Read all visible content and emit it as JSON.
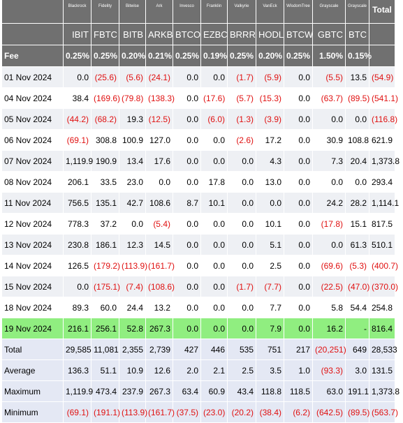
{
  "issuers": [
    "Blackrock",
    "Fidelity",
    "Bitwise",
    "Ark",
    "Invesco",
    "Franklin",
    "Valkyrie",
    "VanEck",
    "WisdomTree",
    "Grayscale",
    "Grayscale"
  ],
  "total_header": "Total",
  "tickers": [
    "IBIT",
    "FBTC",
    "BITB",
    "ARKB",
    "BTCO",
    "EZBC",
    "BRRR",
    "HODL",
    "BTCW",
    "GBTC",
    "BTC"
  ],
  "fee_label": "Fee",
  "fees": [
    "0.25%",
    "0.25%",
    "0.20%",
    "0.21%",
    "0.25%",
    "0.19%",
    "0.25%",
    "0.20%",
    "0.25%",
    "1.50%",
    "0.15%"
  ],
  "rows": [
    {
      "date": "01 Nov 2024",
      "values": [
        "0.0",
        "(25.6)",
        "(5.6)",
        "(24.1)",
        "0.0",
        "0.0",
        "(1.7)",
        "(5.9)",
        "0.0",
        "(5.5)",
        "13.5"
      ],
      "total": "(54.9)"
    },
    {
      "date": "04 Nov 2024",
      "values": [
        "38.4",
        "(169.6)",
        "(79.8)",
        "(138.3)",
        "0.0",
        "(17.6)",
        "(5.7)",
        "(15.3)",
        "0.0",
        "(63.7)",
        "(89.5)"
      ],
      "total": "(541.1)"
    },
    {
      "date": "05 Nov 2024",
      "values": [
        "(44.2)",
        "(68.2)",
        "19.3",
        "(12.5)",
        "0.0",
        "(6.0)",
        "(1.3)",
        "(3.9)",
        "0.0",
        "0.0",
        "0.0"
      ],
      "total": "(116.8)"
    },
    {
      "date": "06 Nov 2024",
      "values": [
        "(69.1)",
        "308.8",
        "100.9",
        "127.0",
        "0.0",
        "0.0",
        "(2.6)",
        "17.2",
        "0.0",
        "30.9",
        "108.8"
      ],
      "total": "621.9"
    },
    {
      "date": "07 Nov 2024",
      "values": [
        "1,119.9",
        "190.9",
        "13.4",
        "17.6",
        "0.0",
        "0.0",
        "0.0",
        "4.3",
        "0.0",
        "7.3",
        "20.4"
      ],
      "total": "1,373.8"
    },
    {
      "date": "08 Nov 2024",
      "values": [
        "206.1",
        "33.5",
        "23.0",
        "0.0",
        "0.0",
        "17.8",
        "0.0",
        "13.0",
        "0.0",
        "0.0",
        "0.0"
      ],
      "total": "293.4"
    },
    {
      "date": "11 Nov 2024",
      "values": [
        "756.5",
        "135.1",
        "42.7",
        "108.6",
        "8.7",
        "10.1",
        "0.0",
        "0.0",
        "0.0",
        "24.2",
        "28.2"
      ],
      "total": "1,114.1"
    },
    {
      "date": "12 Nov 2024",
      "values": [
        "778.3",
        "37.2",
        "0.0",
        "(5.4)",
        "0.0",
        "0.0",
        "0.0",
        "10.1",
        "0.0",
        "(17.8)",
        "15.1"
      ],
      "total": "817.5"
    },
    {
      "date": "13 Nov 2024",
      "values": [
        "230.8",
        "186.1",
        "12.3",
        "14.5",
        "0.0",
        "0.0",
        "0.0",
        "5.1",
        "0.0",
        "0.0",
        "61.3"
      ],
      "total": "510.1"
    },
    {
      "date": "14 Nov 2024",
      "values": [
        "126.5",
        "(179.2)",
        "(113.9)",
        "(161.7)",
        "0.0",
        "0.0",
        "0.0",
        "2.5",
        "0.0",
        "(69.6)",
        "(5.3)"
      ],
      "total": "(400.7)"
    },
    {
      "date": "15 Nov 2024",
      "values": [
        "0.0",
        "(175.1)",
        "(7.4)",
        "(108.6)",
        "0.0",
        "0.0",
        "(1.7)",
        "(7.7)",
        "0.0",
        "(22.5)",
        "(47.0)"
      ],
      "total": "(370.0)"
    },
    {
      "date": "18 Nov 2024",
      "values": [
        "89.3",
        "60.0",
        "24.4",
        "13.2",
        "0.0",
        "0.0",
        "0.0",
        "7.7",
        "0.0",
        "5.8",
        "54.4"
      ],
      "total": "254.8"
    },
    {
      "date": "19 Nov 2024",
      "values": [
        "216.1",
        "256.1",
        "52.8",
        "267.3",
        "0.0",
        "0.0",
        "0.0",
        "7.9",
        "0.0",
        "16.2",
        "-"
      ],
      "total": "816.4"
    }
  ],
  "summary": [
    {
      "label": "Total",
      "values": [
        "29,585",
        "11,081",
        "2,355",
        "2,739",
        "427",
        "446",
        "535",
        "751",
        "217",
        "(20,251)",
        "649"
      ],
      "total": "28,533"
    },
    {
      "label": "Average",
      "values": [
        "136.3",
        "51.1",
        "10.9",
        "12.6",
        "2.0",
        "2.1",
        "2.5",
        "3.5",
        "1.0",
        "(93.3)",
        "3.0"
      ],
      "total": "131.5"
    },
    {
      "label": "Maximum",
      "values": [
        "1,119.9",
        "473.4",
        "237.9",
        "267.3",
        "63.4",
        "60.9",
        "43.4",
        "118.8",
        "118.5",
        "63.0",
        "191.1"
      ],
      "total": "1,373.8"
    },
    {
      "label": "Minimum",
      "values": [
        "(69.1)",
        "(191.1)",
        "(113.9)",
        "(161.7)",
        "(37.5)",
        "(23.0)",
        "(20.2)",
        "(38.4)",
        "(6.2)",
        "(642.5)",
        "(89.5)"
      ],
      "total": "(563.7)"
    }
  ],
  "colors": {
    "header_bg": "#707070",
    "header_text": "#ffffff",
    "negative": "#e01010",
    "highlight_row": "#90ee80",
    "alt_row": "#eef0f4",
    "summary_row": "#e4e8f4"
  }
}
